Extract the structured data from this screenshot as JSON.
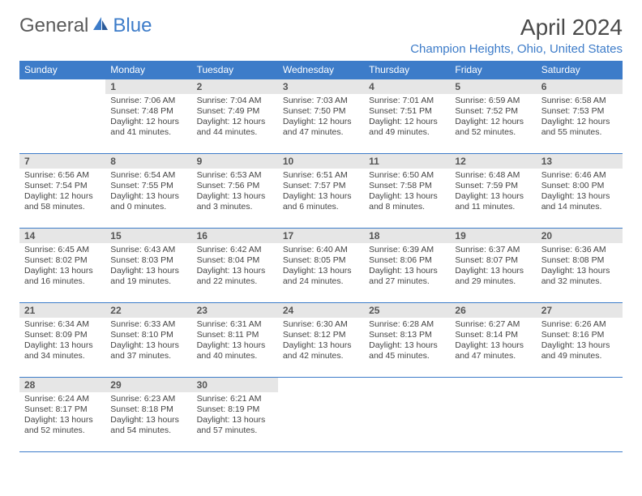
{
  "brand": {
    "part1": "General",
    "part2": "Blue"
  },
  "title": "April 2024",
  "location": "Champion Heights, Ohio, United States",
  "colors": {
    "accent": "#3d7cc9",
    "header_text": "#ffffff",
    "daynum_bg": "#e6e6e6",
    "daynum_text": "#555555",
    "body_text": "#444444",
    "title_text": "#4a4a4a"
  },
  "day_headers": [
    "Sunday",
    "Monday",
    "Tuesday",
    "Wednesday",
    "Thursday",
    "Friday",
    "Saturday"
  ],
  "weeks": [
    [
      null,
      {
        "n": "1",
        "sr": "7:06 AM",
        "ss": "7:48 PM",
        "dl": "12 hours and 41 minutes."
      },
      {
        "n": "2",
        "sr": "7:04 AM",
        "ss": "7:49 PM",
        "dl": "12 hours and 44 minutes."
      },
      {
        "n": "3",
        "sr": "7:03 AM",
        "ss": "7:50 PM",
        "dl": "12 hours and 47 minutes."
      },
      {
        "n": "4",
        "sr": "7:01 AM",
        "ss": "7:51 PM",
        "dl": "12 hours and 49 minutes."
      },
      {
        "n": "5",
        "sr": "6:59 AM",
        "ss": "7:52 PM",
        "dl": "12 hours and 52 minutes."
      },
      {
        "n": "6",
        "sr": "6:58 AM",
        "ss": "7:53 PM",
        "dl": "12 hours and 55 minutes."
      }
    ],
    [
      {
        "n": "7",
        "sr": "6:56 AM",
        "ss": "7:54 PM",
        "dl": "12 hours and 58 minutes."
      },
      {
        "n": "8",
        "sr": "6:54 AM",
        "ss": "7:55 PM",
        "dl": "13 hours and 0 minutes."
      },
      {
        "n": "9",
        "sr": "6:53 AM",
        "ss": "7:56 PM",
        "dl": "13 hours and 3 minutes."
      },
      {
        "n": "10",
        "sr": "6:51 AM",
        "ss": "7:57 PM",
        "dl": "13 hours and 6 minutes."
      },
      {
        "n": "11",
        "sr": "6:50 AM",
        "ss": "7:58 PM",
        "dl": "13 hours and 8 minutes."
      },
      {
        "n": "12",
        "sr": "6:48 AM",
        "ss": "7:59 PM",
        "dl": "13 hours and 11 minutes."
      },
      {
        "n": "13",
        "sr": "6:46 AM",
        "ss": "8:00 PM",
        "dl": "13 hours and 14 minutes."
      }
    ],
    [
      {
        "n": "14",
        "sr": "6:45 AM",
        "ss": "8:02 PM",
        "dl": "13 hours and 16 minutes."
      },
      {
        "n": "15",
        "sr": "6:43 AM",
        "ss": "8:03 PM",
        "dl": "13 hours and 19 minutes."
      },
      {
        "n": "16",
        "sr": "6:42 AM",
        "ss": "8:04 PM",
        "dl": "13 hours and 22 minutes."
      },
      {
        "n": "17",
        "sr": "6:40 AM",
        "ss": "8:05 PM",
        "dl": "13 hours and 24 minutes."
      },
      {
        "n": "18",
        "sr": "6:39 AM",
        "ss": "8:06 PM",
        "dl": "13 hours and 27 minutes."
      },
      {
        "n": "19",
        "sr": "6:37 AM",
        "ss": "8:07 PM",
        "dl": "13 hours and 29 minutes."
      },
      {
        "n": "20",
        "sr": "6:36 AM",
        "ss": "8:08 PM",
        "dl": "13 hours and 32 minutes."
      }
    ],
    [
      {
        "n": "21",
        "sr": "6:34 AM",
        "ss": "8:09 PM",
        "dl": "13 hours and 34 minutes."
      },
      {
        "n": "22",
        "sr": "6:33 AM",
        "ss": "8:10 PM",
        "dl": "13 hours and 37 minutes."
      },
      {
        "n": "23",
        "sr": "6:31 AM",
        "ss": "8:11 PM",
        "dl": "13 hours and 40 minutes."
      },
      {
        "n": "24",
        "sr": "6:30 AM",
        "ss": "8:12 PM",
        "dl": "13 hours and 42 minutes."
      },
      {
        "n": "25",
        "sr": "6:28 AM",
        "ss": "8:13 PM",
        "dl": "13 hours and 45 minutes."
      },
      {
        "n": "26",
        "sr": "6:27 AM",
        "ss": "8:14 PM",
        "dl": "13 hours and 47 minutes."
      },
      {
        "n": "27",
        "sr": "6:26 AM",
        "ss": "8:16 PM",
        "dl": "13 hours and 49 minutes."
      }
    ],
    [
      {
        "n": "28",
        "sr": "6:24 AM",
        "ss": "8:17 PM",
        "dl": "13 hours and 52 minutes."
      },
      {
        "n": "29",
        "sr": "6:23 AM",
        "ss": "8:18 PM",
        "dl": "13 hours and 54 minutes."
      },
      {
        "n": "30",
        "sr": "6:21 AM",
        "ss": "8:19 PM",
        "dl": "13 hours and 57 minutes."
      },
      null,
      null,
      null,
      null
    ]
  ]
}
